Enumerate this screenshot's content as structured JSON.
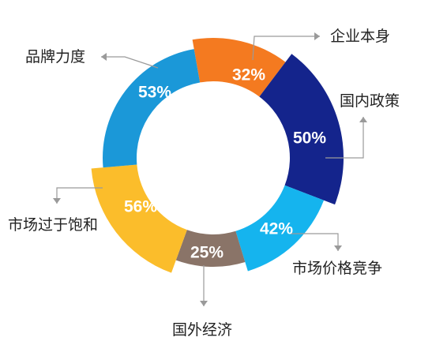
{
  "chart_data": {
    "type": "donut",
    "title": "",
    "series": [
      {
        "label": "企业本身",
        "percent_label": "32%",
        "value": 32,
        "color": "#f47a20"
      },
      {
        "label": "国内政策",
        "percent_label": "50%",
        "value": 50,
        "color": "#14248c"
      },
      {
        "label": "市场价格竞争",
        "percent_label": "42%",
        "value": 42,
        "color": "#15b4ee"
      },
      {
        "label": "国外经济",
        "percent_label": "25%",
        "value": 25,
        "color": "#8a7468"
      },
      {
        "label": "市场过于饱和",
        "percent_label": "56%",
        "value": 56,
        "color": "#fbbd2b"
      },
      {
        "label": "品牌力度",
        "percent_label": "53%",
        "value": 53,
        "color": "#1b98d8"
      }
    ]
  }
}
